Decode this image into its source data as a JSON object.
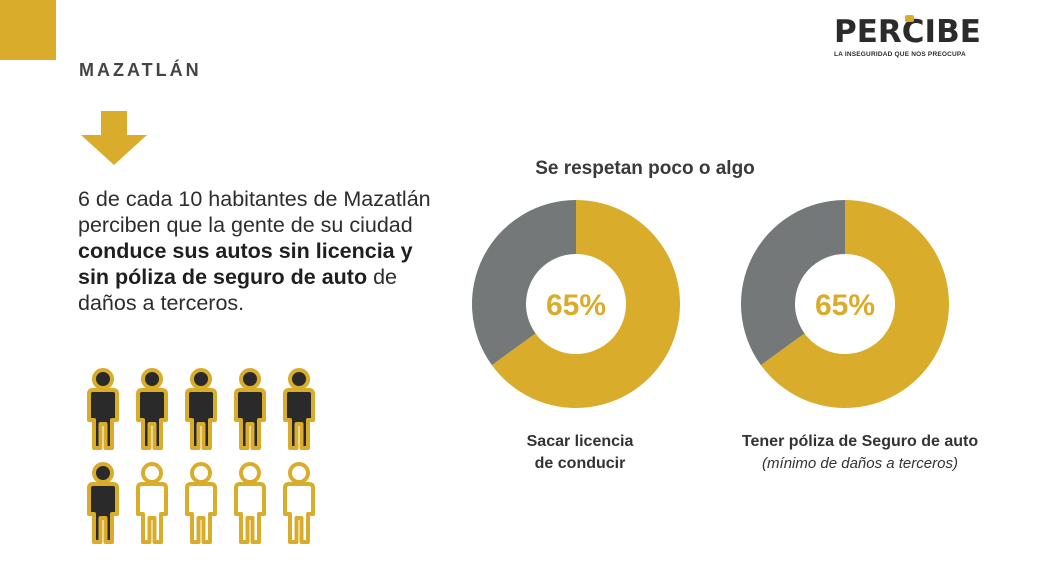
{
  "city": "MAZATLÁN",
  "logo": {
    "word_pre": "PER",
    "word_c": "C",
    "word_post": "IBE",
    "tagline": "LA INSEGURIDAD QUE NOS PREOCUPA"
  },
  "statement": {
    "part1": "6 de cada 10 habitantes de Mazatlán perciben que la gente de su ciudad ",
    "bold": "conduce sus autos sin licencia y sin póliza de seguro de auto",
    "part2": " de daños a terceros."
  },
  "people": {
    "highlighted": 6,
    "total": 10
  },
  "icons": {
    "down_arrow": "arrow-down-icon",
    "person": "person-icon"
  },
  "colors": {
    "accent": "#d9ac2c",
    "gray": "#757879",
    "dark": "#2a2a2a"
  },
  "chart_data": [
    {
      "type": "pie",
      "title": "Se respetan poco o algo",
      "label_line1": "Sacar licencia",
      "label_line2": "de conducir",
      "center_label": "65%",
      "values": [
        65,
        35
      ],
      "colors": [
        "#d9ac2c",
        "#757879"
      ]
    },
    {
      "type": "pie",
      "label_line1": "Tener póliza de Seguro de auto",
      "label_line2": "(mínimo de daños a terceros)",
      "center_label": "65%",
      "values": [
        65,
        35
      ],
      "colors": [
        "#d9ac2c",
        "#757879"
      ]
    }
  ]
}
